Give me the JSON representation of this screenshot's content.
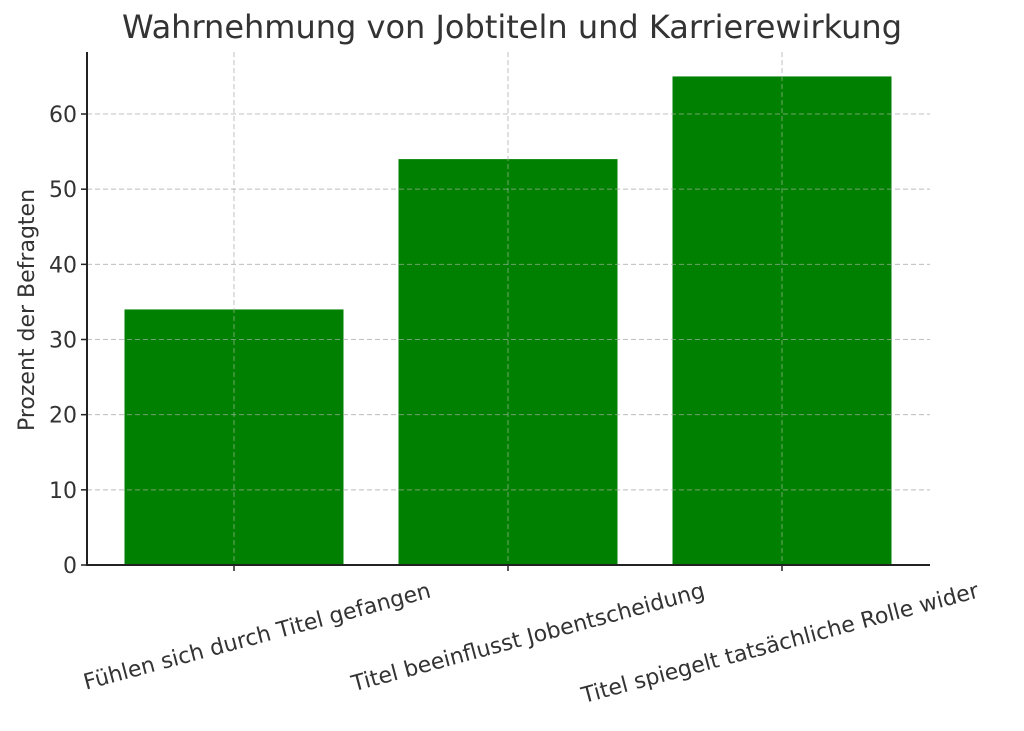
{
  "chart_data": {
    "type": "bar",
    "title": "Wahrnehmung von Jobtiteln und Karrierewirkung",
    "xlabel": "",
    "ylabel": "Prozent der Befragten",
    "categories": [
      "Fühlen sich durch Titel gefangen",
      "Titel beeinflusst Jobentscheidung",
      "Titel spiegelt tatsächliche Rolle wider"
    ],
    "values": [
      34,
      54,
      65
    ],
    "ylim": [
      0,
      68.25
    ],
    "yticks": [
      0,
      10,
      20,
      30,
      40,
      50,
      60
    ],
    "grid": true,
    "legend": null,
    "bar_color": "#008000"
  }
}
